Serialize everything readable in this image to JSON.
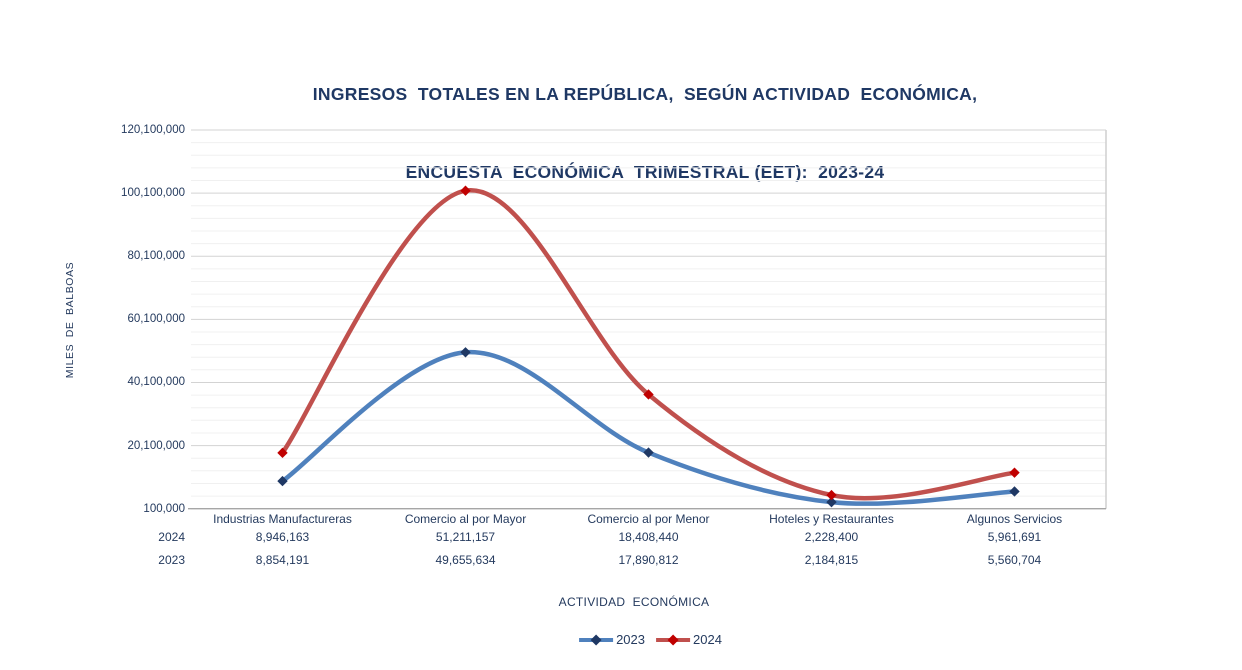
{
  "title": {
    "line1": "INGRESOS  TOTALES EN LA REPÚBLICA,  SEGÚN ACTIVIDAD  ECONÓMICA,",
    "line2": "ENCUESTA  ECONÓMICA  TRIMESTRAL (EET):  2023-24"
  },
  "chart_data": {
    "type": "line",
    "stacked": true,
    "smoothed": true,
    "title": "INGRESOS TOTALES EN LA REPÚBLICA, SEGÚN ACTIVIDAD ECONÓMICA, ENCUESTA ECONÓMICA TRIMESTRAL (EET): 2023-24",
    "xlabel": "ACTIVIDAD  ECONÓMICA",
    "ylabel": "MILES DE BALBOAS",
    "ylim": [
      100000,
      120100000
    ],
    "ymajor_step": 20000000,
    "yminor_per_major": 5,
    "ytick_labels": [
      "120,100,000",
      "100,100,000",
      "80,100,000",
      "60,100,000",
      "40,100,000",
      "20,100,000",
      "100,000"
    ],
    "categories": [
      "Industrias Manufactureras",
      "Comercio al por Mayor",
      "Comercio al por Menor",
      "Hoteles y Restaurantes",
      "Algunos Servicios"
    ],
    "series": [
      {
        "name": "2023",
        "values": [
          8854191,
          49655634,
          17890812,
          2184815,
          5560704
        ],
        "labels": [
          "8,854,191",
          "49,655,634",
          "17,890,812",
          "2,184,815",
          "5,560,704"
        ],
        "line_color": "#4F81BD",
        "marker_color": "#1F3864"
      },
      {
        "name": "2024",
        "values": [
          8946163,
          51211157,
          18408440,
          2228400,
          5961691
        ],
        "labels": [
          "8,946,163",
          "51,211,157",
          "18,408,440",
          "2,228,400",
          "5,961,691"
        ],
        "line_color": "#C0504D",
        "marker_color": "#C00000"
      }
    ],
    "table_row_order": [
      "2024",
      "2023"
    ],
    "legend_order": [
      "2023",
      "2024"
    ],
    "legend_position": "bottom",
    "grid": {
      "on": true,
      "major_color": "#D3D3D3",
      "minor_color": "#F0F0F0",
      "axis_color": "#A6A6A6",
      "right_border_color": "#CFCFCF"
    }
  },
  "colors": {
    "title_text": "#1F3864",
    "body_text": "#243A5E",
    "background": "#FFFFFF"
  }
}
